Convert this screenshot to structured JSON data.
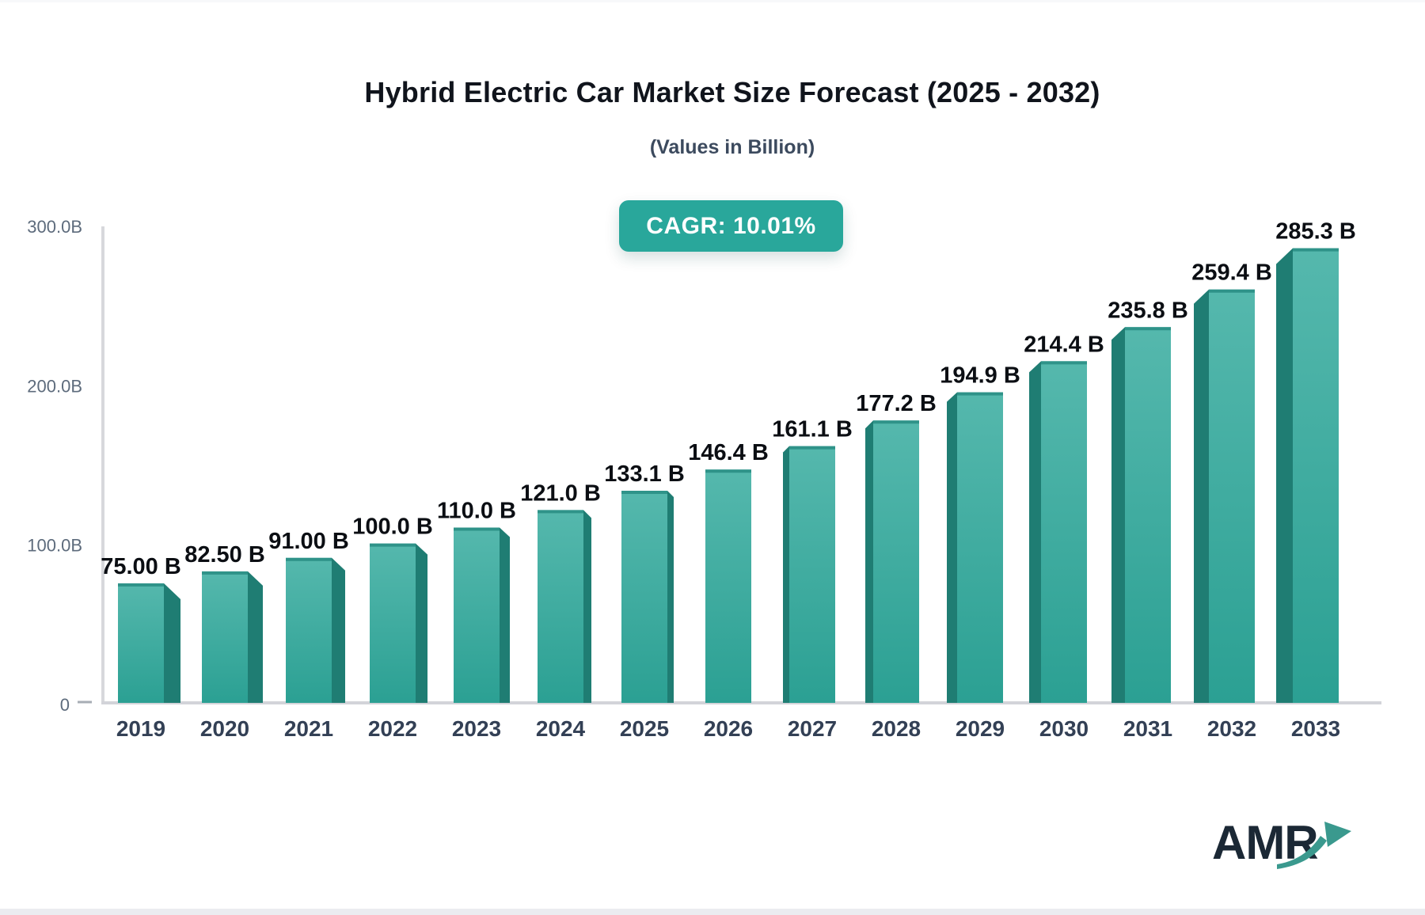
{
  "page": {
    "logo_text": "AMR"
  },
  "chart_data": {
    "type": "bar",
    "title": "Hybrid Electric Car Market Size Forecast (2025 - 2032)",
    "subtitle": "(Values in Billion)",
    "annotation": "CAGR: 10.01%",
    "categories": [
      "2019",
      "2020",
      "2021",
      "2022",
      "2023",
      "2024",
      "2025",
      "2026",
      "2027",
      "2028",
      "2029",
      "2030",
      "2031",
      "2032",
      "2033"
    ],
    "values": [
      75.0,
      82.5,
      91.0,
      100.0,
      110.0,
      121.0,
      133.1,
      146.4,
      161.1,
      177.2,
      194.9,
      214.4,
      235.8,
      259.4,
      285.3
    ],
    "value_labels": [
      "75.00 B",
      "82.50 B",
      "91.00 B",
      "100.0 B",
      "110.0 B",
      "121.0 B",
      "133.1 B",
      "146.4 B",
      "161.1 B",
      "177.2 B",
      "194.9 B",
      "214.4 B",
      "235.8 B",
      "259.4 B",
      "285.3 B"
    ],
    "y_ticks": [
      {
        "label": "300.0B",
        "value": 300,
        "tick": false
      },
      {
        "label": "200.0B",
        "value": 200,
        "tick": false
      },
      {
        "label": "100.0B",
        "value": 100,
        "tick": false
      },
      {
        "label": "0",
        "value": 0,
        "tick": true
      }
    ],
    "ylim": [
      0,
      300
    ],
    "grid": false,
    "legend": "none",
    "xlabel": "",
    "ylabel": ""
  },
  "colors": {
    "bar_face_top": "#55b8ad",
    "bar_face_bottom": "#2ba093",
    "bar_top_edge": "#2f9389",
    "bar_side": "#1f7d73",
    "badge_bg": "#29a79b",
    "badge_text": "#ffffff",
    "axis_line": "#d7d8dc",
    "baseline": "#d3d4d9",
    "tick": "#a7adb5",
    "y_label": "#5d6b7c",
    "x_label": "#334055",
    "value_label": "#0b0e13",
    "title": "#10141c",
    "subtitle": "#3c4a5e",
    "logo_text": "#1b2835",
    "logo_arrow": "#3a998e"
  }
}
